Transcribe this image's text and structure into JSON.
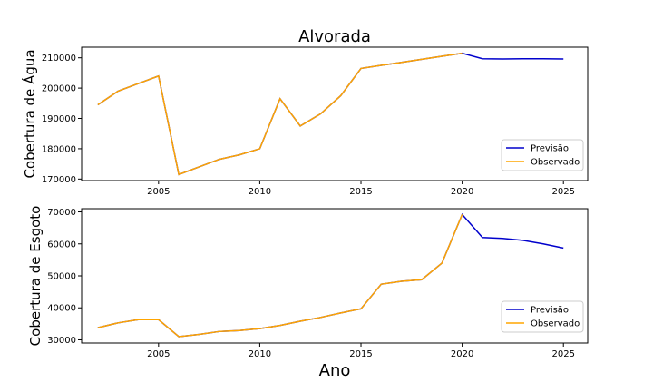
{
  "figure": {
    "title": "Alvorada",
    "xlabel": "Ano"
  },
  "chart_data": [
    {
      "type": "line",
      "ylabel": "Cobertura de Água",
      "xlim": [
        2001.2,
        2026.2
      ],
      "ylim": [
        169500,
        213500
      ],
      "xticks": [
        2005,
        2010,
        2015,
        2020,
        2025
      ],
      "yticks": [
        170000,
        180000,
        190000,
        200000,
        210000
      ],
      "ytick_labels": [
        "170000",
        "180000",
        "190000",
        "200000",
        "210000"
      ],
      "legend_position": "lower-right",
      "series": [
        {
          "name": "Previsão",
          "color": "#0000cc",
          "x": [
            2002,
            2003,
            2004,
            2005,
            2006,
            2007,
            2008,
            2009,
            2010,
            2011,
            2012,
            2013,
            2014,
            2015,
            2016,
            2017,
            2018,
            2019,
            2020,
            2021,
            2022,
            2023,
            2024,
            2025
          ],
          "y": [
            194500,
            199000,
            201500,
            204000,
            171500,
            174000,
            176500,
            178000,
            180000,
            196500,
            187500,
            191500,
            197500,
            206500,
            207500,
            208500,
            209500,
            210500,
            211500,
            209700,
            209600,
            209700,
            209700,
            209600
          ]
        },
        {
          "name": "Observado",
          "color": "#ffa500",
          "x": [
            2002,
            2003,
            2004,
            2005,
            2006,
            2007,
            2008,
            2009,
            2010,
            2011,
            2012,
            2013,
            2014,
            2015,
            2016,
            2017,
            2018,
            2019,
            2020
          ],
          "y": [
            194500,
            199000,
            201500,
            204000,
            171500,
            174000,
            176500,
            178000,
            180000,
            196500,
            187500,
            191500,
            197500,
            206500,
            207500,
            208500,
            209500,
            210500,
            211500
          ]
        }
      ]
    },
    {
      "type": "line",
      "ylabel": "Cobertura de Esgoto",
      "xlim": [
        2001.2,
        2026.2
      ],
      "ylim": [
        29000,
        71000
      ],
      "xticks": [
        2005,
        2010,
        2015,
        2020,
        2025
      ],
      "yticks": [
        30000,
        40000,
        50000,
        60000,
        70000
      ],
      "ytick_labels": [
        "30000",
        "40000",
        "50000",
        "60000",
        "70000"
      ],
      "legend_position": "lower-right",
      "series": [
        {
          "name": "Previsão",
          "color": "#0000cc",
          "x": [
            2002,
            2003,
            2004,
            2005,
            2006,
            2007,
            2008,
            2009,
            2010,
            2011,
            2012,
            2013,
            2014,
            2015,
            2016,
            2017,
            2018,
            2019,
            2020,
            2021,
            2022,
            2023,
            2024,
            2025
          ],
          "y": [
            33800,
            35300,
            36300,
            36300,
            31000,
            31700,
            32600,
            32900,
            33500,
            34500,
            35800,
            37000,
            38400,
            39700,
            47400,
            48300,
            48800,
            54000,
            69200,
            62000,
            61700,
            61100,
            60000,
            58700
          ]
        },
        {
          "name": "Observado",
          "color": "#ffa500",
          "x": [
            2002,
            2003,
            2004,
            2005,
            2006,
            2007,
            2008,
            2009,
            2010,
            2011,
            2012,
            2013,
            2014,
            2015,
            2016,
            2017,
            2018,
            2019,
            2020
          ],
          "y": [
            33800,
            35300,
            36300,
            36300,
            31000,
            31700,
            32600,
            32900,
            33500,
            34500,
            35800,
            37000,
            38400,
            39700,
            47400,
            48300,
            48800,
            54000,
            69200
          ]
        }
      ]
    }
  ]
}
